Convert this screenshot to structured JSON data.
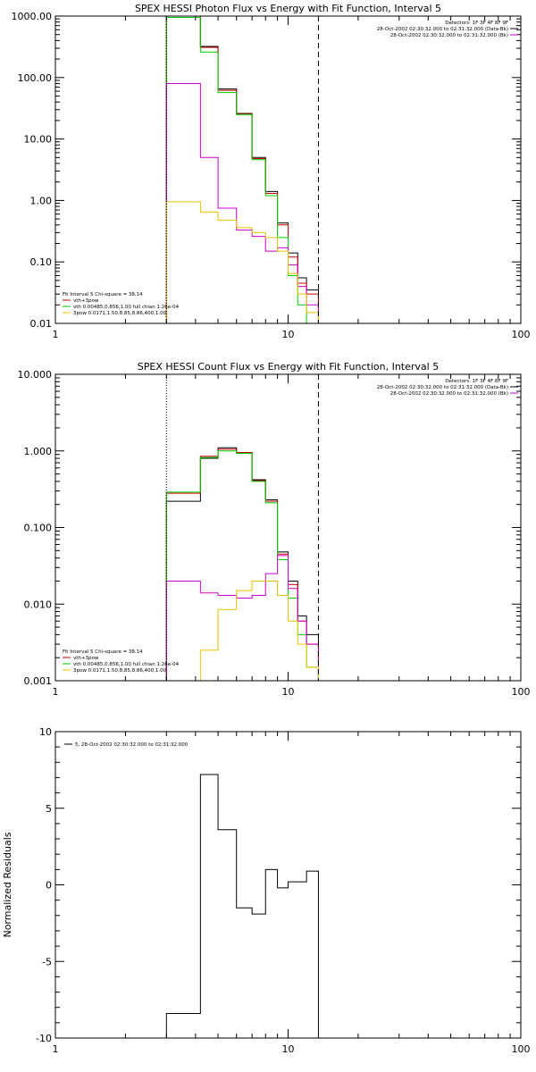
{
  "chart_data": [
    {
      "type": "line",
      "title": "SPEX HESSI Photon Flux vs Energy with Fit Function, Interval 5",
      "xscale": "log",
      "yscale": "log",
      "xlim": [
        1,
        100
      ],
      "ylim": [
        0.01,
        1000
      ],
      "x_ticks": [
        1,
        10,
        100
      ],
      "x_tick_labels": [
        "1",
        "10",
        "100"
      ],
      "y_ticks": [
        0.01,
        0.1,
        1,
        10,
        100,
        1000
      ],
      "y_tick_labels": [
        "0.01",
        "0.10",
        "1.00",
        "10.00",
        "100.00",
        "1000.00"
      ],
      "vlines": [
        {
          "x": 3.0,
          "style": "dotted",
          "color": "#000000"
        },
        {
          "x": 13.5,
          "style": "dashed",
          "color": "#000000"
        }
      ],
      "bin_edges": [
        3.0,
        4.2,
        5.0,
        6.0,
        7.0,
        8.0,
        9.0,
        10.0,
        11.0,
        12.0,
        13.5
      ],
      "series": [
        {
          "color": "#000000",
          "values": [
            1000,
            320,
            65,
            26,
            5.0,
            1.4,
            0.43,
            0.14,
            0.055,
            0.035
          ]
        },
        {
          "color": "#cc0000",
          "values": [
            1000,
            310,
            62,
            25.5,
            4.8,
            1.3,
            0.4,
            0.12,
            0.045,
            0.03
          ]
        },
        {
          "color": "#00cc00",
          "values": [
            950,
            260,
            57,
            25,
            4.6,
            1.2,
            0.25,
            0.06,
            0.02,
            0.009
          ]
        },
        {
          "color": "#cc00cc",
          "values": [
            80,
            5.0,
            0.75,
            0.33,
            0.26,
            0.15,
            0.17,
            0.09,
            0.04,
            0.02
          ]
        },
        {
          "color": "#e6c200",
          "values": [
            0.95,
            0.65,
            0.48,
            0.36,
            0.3,
            0.25,
            0.15,
            0.065,
            0.03,
            0.015
          ]
        }
      ],
      "legend_top_right": {
        "detectors": "Detectors: 1F 3F 4F 8F 9F",
        "entries": [
          {
            "text": "28-Oct-2002 02:30:32.000 to 02:31:32.000 (Data-Bk)",
            "color": "#000000"
          },
          {
            "text": "28-Oct-2002 02:30:32.000 to 02:31:32.000 (Bk)",
            "color": "#cc00cc"
          }
        ]
      },
      "legend_bottom_left": {
        "header": "Fit Interval 5   Chi-square = 38.14",
        "entries": [
          {
            "text": "vth+3pow",
            "color": "#cc0000"
          },
          {
            "text": "vth 0.00485,0.856,1.00  full chian 1.26e-04",
            "color": "#00cc00"
          },
          {
            "text": "3pow 0.0171,1.50,8.85,8.86,400,1.00",
            "color": "#e6c200"
          }
        ]
      }
    },
    {
      "type": "line",
      "title": "SPEX HESSI Count Flux vs Energy with Fit Function, Interval 5",
      "xscale": "log",
      "yscale": "log",
      "xlim": [
        1,
        100
      ],
      "ylim": [
        0.001,
        10
      ],
      "x_ticks": [
        1,
        10,
        100
      ],
      "x_tick_labels": [
        "1",
        "10",
        "100"
      ],
      "y_ticks": [
        0.001,
        0.01,
        0.1,
        1,
        10
      ],
      "y_tick_labels": [
        "0.001",
        "0.010",
        "0.100",
        "1.000",
        "10.000"
      ],
      "vlines": [
        {
          "x": 3.0,
          "style": "dotted",
          "color": "#000000"
        },
        {
          "x": 13.5,
          "style": "dashed",
          "color": "#000000"
        }
      ],
      "bin_edges": [
        3.0,
        4.2,
        5.0,
        6.0,
        7.0,
        8.0,
        9.0,
        10.0,
        11.0,
        12.0,
        13.5,
        15.0
      ],
      "series": [
        {
          "color": "#000000",
          "values": [
            0.22,
            0.8,
            1.1,
            0.95,
            0.42,
            0.23,
            0.048,
            0.02,
            0.007,
            0.004,
            0.001
          ]
        },
        {
          "color": "#cc0000",
          "values": [
            0.28,
            0.85,
            1.05,
            0.95,
            0.41,
            0.22,
            0.045,
            0.018,
            0.006,
            0.003,
            0.001
          ]
        },
        {
          "color": "#00cc00",
          "values": [
            0.29,
            0.82,
            1.0,
            0.93,
            0.4,
            0.21,
            0.038,
            0.012,
            0.004,
            0.0015,
            0.0009
          ]
        },
        {
          "color": "#cc00cc",
          "values": [
            0.02,
            0.014,
            0.013,
            0.012,
            0.013,
            0.025,
            0.043,
            0.016,
            0.006,
            0.003,
            0.001
          ]
        },
        {
          "color": "#e6c200",
          "values": [
            0.0009,
            0.0025,
            0.0085,
            0.015,
            0.02,
            0.02,
            0.013,
            0.006,
            0.003,
            0.0015,
            0.0009
          ]
        }
      ],
      "legend_top_right": {
        "detectors": "Detectors: 1F 3F 4F 8F 9F",
        "entries": [
          {
            "text": "28-Oct-2002 02:30:32.000 to 02:31:32.000 (Data-Bk)",
            "color": "#000000"
          },
          {
            "text": "28-Oct-2002 02:30:32.000 to 02:31:32.000 (Bk)",
            "color": "#cc00cc"
          }
        ]
      },
      "legend_bottom_left": {
        "header": "Fit Interval 5   Chi-square = 38.14",
        "entries": [
          {
            "text": "vth+3pow",
            "color": "#cc0000"
          },
          {
            "text": "vth 0.00485,0.856,1.00  full chian 1.26e-04",
            "color": "#00cc00"
          },
          {
            "text": "3pow 0.0171,1.50,8.85,8.86,400,1.00",
            "color": "#e6c200"
          }
        ]
      }
    },
    {
      "type": "line",
      "title": "",
      "ylabel": "Normalized Residuals",
      "xscale": "log",
      "yscale": "linear",
      "xlim": [
        1,
        100
      ],
      "ylim": [
        -10,
        10
      ],
      "x_ticks": [
        1,
        10,
        100
      ],
      "x_tick_labels": [
        "1",
        "10",
        "100"
      ],
      "y_ticks": [
        -10,
        -5,
        0,
        5,
        10
      ],
      "y_tick_labels": [
        "-10",
        "-5",
        "0",
        "5",
        "10"
      ],
      "bin_edges": [
        3.0,
        4.2,
        5.0,
        6.0,
        7.0,
        8.0,
        9.0,
        10.0,
        11.0,
        12.0,
        13.5
      ],
      "series": [
        {
          "color": "#000000",
          "values": [
            -8.4,
            7.2,
            3.6,
            -1.5,
            -1.9,
            1.0,
            -0.2,
            0.2,
            0.2,
            0.9
          ]
        }
      ],
      "legend_top_left": {
        "entries": [
          {
            "text": "5, 28-Oct-2002 02:30:32.000 to 02:31:32.000",
            "color": "#000000"
          }
        ]
      }
    }
  ]
}
